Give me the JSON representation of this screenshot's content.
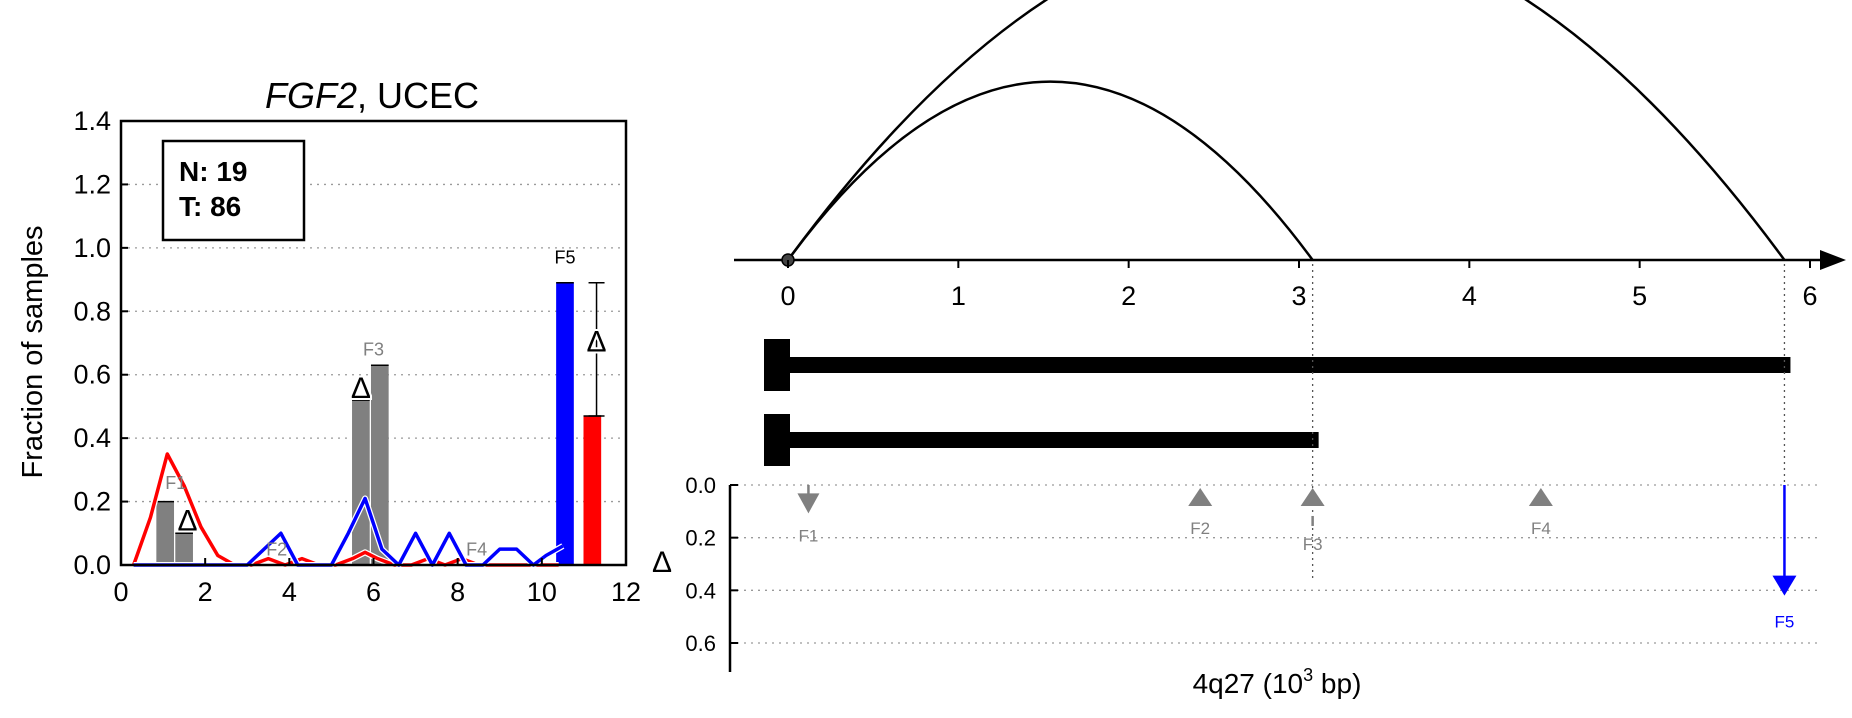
{
  "chart_data": [
    {
      "type": "bar",
      "title_gene": "FGF2",
      "title_cohort": ", UCEC",
      "ylabel": "Fraction of samples",
      "xlim": [
        0,
        12
      ],
      "ylim": [
        0,
        1.4
      ],
      "xticks": [
        "0",
        "2",
        "4",
        "6",
        "8",
        "10",
        "12"
      ],
      "yticks": [
        "0.0",
        "0.2",
        "0.4",
        "0.6",
        "0.8",
        "1.0",
        "1.2",
        "1.4"
      ],
      "grid": "horizontal dotted",
      "legend": {
        "position": "top-left",
        "n_label": "N: 19",
        "t_label": "T: 86"
      },
      "delta_symbol": "Δ",
      "colors": {
        "normal": "#0000ff",
        "tumor": "#ff0000",
        "feature": "#808080"
      },
      "feature_bars": [
        {
          "label": "F1",
          "x": [
            1.05,
            1.5
          ],
          "values": [
            0.2,
            0.1
          ],
          "delta": 0.1
        },
        {
          "label": "F2",
          "x": [],
          "values": [],
          "delta": null
        },
        {
          "label": "F3",
          "x": [
            5.7,
            6.15
          ],
          "values": [
            0.52,
            0.63
          ],
          "delta": 0.11
        },
        {
          "label": "F4",
          "x": [],
          "values": [],
          "delta": null
        },
        {
          "label": "F5",
          "x": [
            10.55,
            11.2
          ],
          "values": [
            0.89,
            0.47
          ],
          "delta": 0.42,
          "colors": [
            "#0000ff",
            "#ff0000"
          ]
        }
      ],
      "series": [
        {
          "name": "",
          "color": "#ff0000",
          "x": [
            0.3,
            0.7,
            1.1,
            1.5,
            1.9,
            2.3,
            2.7,
            3.1,
            3.5,
            3.9,
            4.3,
            4.7,
            5.1,
            5.5,
            5.8,
            6.1,
            6.5,
            6.9,
            7.3,
            7.7,
            8.1,
            8.5,
            8.9,
            9.3,
            9.7,
            10.1,
            10.4
          ],
          "values": [
            0.0,
            0.15,
            0.35,
            0.25,
            0.12,
            0.03,
            0.0,
            0.0,
            0.02,
            0.0,
            0.02,
            0.0,
            0.0,
            0.02,
            0.04,
            0.02,
            0.0,
            0.0,
            0.02,
            0.0,
            0.02,
            0.0,
            0.0,
            0.0,
            0.0,
            0.0,
            0.0
          ]
        },
        {
          "name": "",
          "color": "#0000ff",
          "x": [
            0.3,
            1.0,
            2.0,
            3.0,
            3.4,
            3.8,
            4.2,
            4.6,
            5.0,
            5.4,
            5.8,
            6.2,
            6.6,
            7.0,
            7.4,
            7.8,
            8.2,
            8.6,
            9.0,
            9.4,
            9.8,
            10.1,
            10.5
          ],
          "values": [
            0.0,
            0.0,
            0.0,
            0.0,
            0.05,
            0.1,
            0.0,
            0.0,
            0.0,
            0.1,
            0.21,
            0.05,
            0.0,
            0.1,
            0.0,
            0.1,
            0.0,
            0.0,
            0.05,
            0.05,
            0.0,
            0.03,
            0.06
          ]
        }
      ]
    },
    {
      "type": "diagram",
      "xlabel_main": "4q27 (10",
      "xlabel_sup": "3",
      "xlabel_end": " bp)",
      "xlim": [
        0,
        6
      ],
      "xticks": [
        "0",
        "1",
        "2",
        "3",
        "4",
        "5",
        "6"
      ],
      "arcs": [
        {
          "start": 0,
          "end": 3.08
        },
        {
          "start": 0,
          "end": 5.85
        }
      ],
      "isoforms": [
        {
          "start": 0,
          "end": 5.85
        },
        {
          "start": 0,
          "end": 3.08
        }
      ],
      "delta_axis": {
        "label": "Δ",
        "ylim": [
          0,
          0.6
        ],
        "yticks": [
          "0.0",
          "0.2",
          "0.4",
          "0.6"
        ]
      },
      "features": [
        {
          "label": "F1",
          "x": 0.12,
          "delta": 0.1,
          "direction": "down",
          "color": "#808080"
        },
        {
          "label": "F2",
          "x": 2.42,
          "delta": 0.0,
          "direction": "up",
          "color": "#808080"
        },
        {
          "label": "F3",
          "x": 3.08,
          "delta": 0.11,
          "direction": "up",
          "color": "#808080"
        },
        {
          "label": "F4",
          "x": 4.42,
          "delta": 0.0,
          "direction": "up",
          "color": "#808080"
        },
        {
          "label": "F5",
          "x": 5.85,
          "delta": 0.42,
          "direction": "down",
          "color": "#0000ff"
        }
      ]
    }
  ]
}
